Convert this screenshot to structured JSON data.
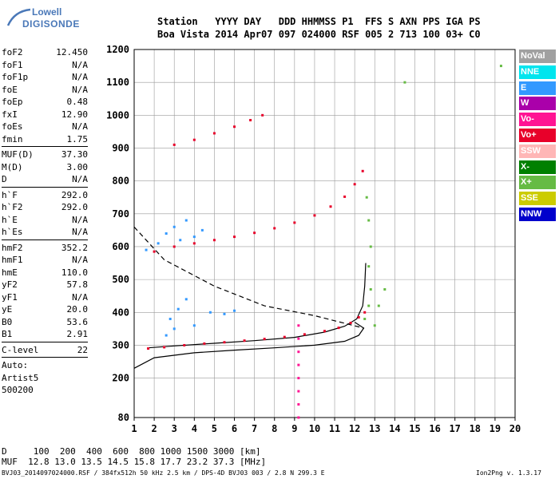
{
  "logo": {
    "line1": "Lowell",
    "line2": "DIGISONDE"
  },
  "header": {
    "row1": "Station   YYYY DAY   DDD HHMMSS P1  FFS S AXN PPS IGA PS",
    "row2": "Boa Vista 2014 Apr07 097 024000 RSF 005 2 713 100 03+ C0"
  },
  "params": {
    "group1": [
      {
        "label": "foF2",
        "value": "12.450"
      },
      {
        "label": "foF1",
        "value": "N/A"
      },
      {
        "label": "foF1p",
        "value": "N/A"
      },
      {
        "label": "foE",
        "value": "N/A"
      },
      {
        "label": "foEp",
        "value": "0.48"
      },
      {
        "label": "fxI",
        "value": "12.90"
      },
      {
        "label": "foEs",
        "value": "N/A"
      },
      {
        "label": "fmin",
        "value": "1.75"
      }
    ],
    "group2": [
      {
        "label": "MUF(D)",
        "value": "37.30"
      },
      {
        "label": "M(D)",
        "value": "3.00"
      },
      {
        "label": "D",
        "value": "N/A"
      }
    ],
    "group3": [
      {
        "label": "h`F",
        "value": "292.0"
      },
      {
        "label": "h`F2",
        "value": "292.0"
      },
      {
        "label": "h`E",
        "value": "N/A"
      },
      {
        "label": "h`Es",
        "value": "N/A"
      }
    ],
    "group4": [
      {
        "label": "hmF2",
        "value": "352.2"
      },
      {
        "label": "hmF1",
        "value": "N/A"
      },
      {
        "label": "hmE",
        "value": "110.0"
      },
      {
        "label": "yF2",
        "value": "57.8"
      },
      {
        "label": "yF1",
        "value": "N/A"
      },
      {
        "label": "yE",
        "value": "20.0"
      },
      {
        "label": "B0",
        "value": "53.6"
      },
      {
        "label": "B1",
        "value": "2.91"
      }
    ],
    "group5": [
      {
        "label": "C-level",
        "value": "22"
      }
    ],
    "free": [
      "Auto:",
      "Artist5",
      "500200"
    ]
  },
  "legend": [
    {
      "label": "NoVal",
      "color": "#a0a0a0"
    },
    {
      "label": "NNE",
      "color": "#00e5ee"
    },
    {
      "label": "E",
      "color": "#3399ff"
    },
    {
      "label": "W",
      "color": "#aa00aa"
    },
    {
      "label": "Vo-",
      "color": "#ff1493"
    },
    {
      "label": "Vo+",
      "color": "#e8002a"
    },
    {
      "label": "SSW",
      "color": "#ffb6b6"
    },
    {
      "label": "X-",
      "color": "#008000"
    },
    {
      "label": "X+",
      "color": "#66bb44"
    },
    {
      "label": "SSE",
      "color": "#cccc00"
    },
    {
      "label": "NNW",
      "color": "#0000cc"
    }
  ],
  "chart_data": {
    "type": "scatter",
    "title": "",
    "xlabel": "",
    "ylabel": "",
    "xlim": [
      1,
      20
    ],
    "ylim": [
      80,
      1200
    ],
    "x_ticks": [
      "1",
      "2",
      "3",
      "4",
      "5",
      "6",
      "7",
      "8",
      "9",
      "10",
      "11",
      "12",
      "13",
      "14",
      "15",
      "16",
      "17",
      "18",
      "19",
      "20"
    ],
    "y_ticks": [
      "80",
      "200",
      "300",
      "400",
      "500",
      "600",
      "700",
      "800",
      "900",
      "1000",
      "1100",
      "1200"
    ],
    "grid": true,
    "series": [
      {
        "color": "#e8002a",
        "points": [
          [
            1.7,
            290
          ],
          [
            2.5,
            294
          ],
          [
            3.5,
            300
          ],
          [
            4.5,
            305
          ],
          [
            5.5,
            309
          ],
          [
            6.5,
            314
          ],
          [
            7.5,
            319
          ],
          [
            8.5,
            325
          ],
          [
            9.5,
            333
          ],
          [
            10.5,
            343
          ],
          [
            11.2,
            353
          ],
          [
            11.8,
            368
          ],
          [
            12.2,
            385
          ],
          [
            12.5,
            400
          ]
        ]
      },
      {
        "color": "#e8002a",
        "points": [
          [
            2.0,
            585
          ],
          [
            3.0,
            600
          ],
          [
            4.0,
            610
          ],
          [
            5.0,
            620
          ],
          [
            6.0,
            630
          ],
          [
            7.0,
            642
          ],
          [
            8.0,
            656
          ],
          [
            9.0,
            673
          ],
          [
            10.0,
            695
          ],
          [
            10.8,
            722
          ],
          [
            11.5,
            752
          ],
          [
            12.0,
            790
          ],
          [
            12.4,
            830
          ]
        ]
      },
      {
        "color": "#e8002a",
        "points": [
          [
            3.0,
            910
          ],
          [
            4.0,
            925
          ],
          [
            5.0,
            945
          ],
          [
            6.0,
            965
          ],
          [
            6.8,
            985
          ],
          [
            7.4,
            1000
          ]
        ]
      },
      {
        "color": "#3399ff",
        "points": [
          [
            1.6,
            590
          ],
          [
            2.2,
            610
          ],
          [
            2.6,
            640
          ],
          [
            3.0,
            660
          ],
          [
            3.3,
            620
          ],
          [
            3.6,
            680
          ],
          [
            4.0,
            630
          ],
          [
            4.4,
            650
          ],
          [
            2.8,
            380
          ],
          [
            3.2,
            410
          ],
          [
            3.6,
            440
          ],
          [
            3.0,
            350
          ],
          [
            2.6,
            330
          ],
          [
            4.0,
            360
          ],
          [
            4.8,
            400
          ],
          [
            5.5,
            395
          ],
          [
            6.0,
            405
          ]
        ]
      },
      {
        "color": "#66bb44",
        "points": [
          [
            12.5,
            380
          ],
          [
            12.7,
            420
          ],
          [
            12.8,
            470
          ],
          [
            12.7,
            540
          ],
          [
            12.8,
            600
          ],
          [
            12.7,
            680
          ],
          [
            12.6,
            750
          ],
          [
            13.0,
            360
          ],
          [
            13.2,
            420
          ],
          [
            13.5,
            470
          ],
          [
            14.5,
            1100
          ],
          [
            19.3,
            1150
          ]
        ]
      },
      {
        "color": "#ff1493",
        "points": [
          [
            9.2,
            80
          ],
          [
            9.2,
            120
          ],
          [
            9.2,
            160
          ],
          [
            9.2,
            200
          ],
          [
            9.2,
            240
          ],
          [
            9.2,
            280
          ],
          [
            9.2,
            320
          ],
          [
            9.2,
            360
          ]
        ]
      }
    ],
    "curves": {
      "dashed_profile": {
        "color": "#000000",
        "points": [
          [
            1,
            660
          ],
          [
            2.5,
            560
          ],
          [
            5,
            480
          ],
          [
            7.5,
            420
          ],
          [
            10,
            390
          ],
          [
            12.45,
            352
          ]
        ]
      },
      "profile_solid": {
        "color": "#000000",
        "points": [
          [
            1,
            230
          ],
          [
            2,
            262
          ],
          [
            4,
            277
          ],
          [
            6,
            285
          ],
          [
            8,
            292
          ],
          [
            10,
            300
          ],
          [
            11.5,
            312
          ],
          [
            12.2,
            330
          ],
          [
            12.45,
            352
          ],
          [
            12.0,
            370
          ]
        ]
      },
      "trace_solid": {
        "color": "#000000",
        "points": [
          [
            1.7,
            292
          ],
          [
            3,
            298
          ],
          [
            5,
            306
          ],
          [
            7,
            314
          ],
          [
            9,
            324
          ],
          [
            10.5,
            340
          ],
          [
            11.5,
            358
          ],
          [
            12.1,
            380
          ],
          [
            12.4,
            420
          ],
          [
            12.5,
            480
          ],
          [
            12.55,
            550
          ]
        ]
      }
    }
  },
  "footer": {
    "d_row": "D     100  200  400  600  800 1000 1500 3000 [km]",
    "muf_row": "MUF  12.8 13.0 13.5 14.5 15.8 17.7 23.2 37.3 [MHz]",
    "info": "BVJ03_2014097024000.RSF / 384fx512h 50 kHz 2.5 km / DPS-4D BVJ03 003 / 2.8 N 299.3 E",
    "version": "Ion2Png v. 1.3.17"
  }
}
